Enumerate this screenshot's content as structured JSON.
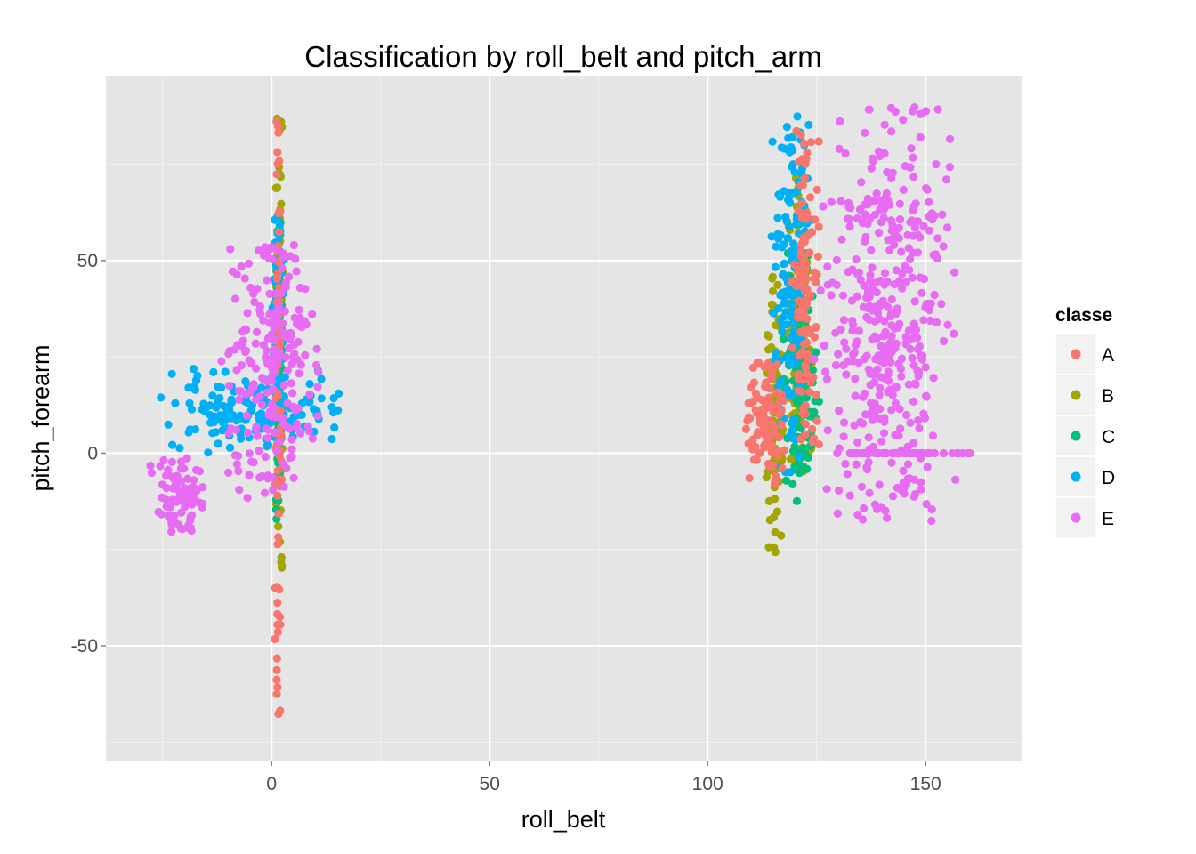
{
  "chart_data": {
    "type": "scatter",
    "title": "Classification by roll_belt and pitch_arm",
    "xlabel": "roll_belt",
    "ylabel": "pitch_forearm",
    "xlim": [
      -38,
      172
    ],
    "ylim": [
      -80,
      98
    ],
    "x_ticks": [
      0,
      50,
      100,
      150
    ],
    "y_ticks": [
      -50,
      0,
      50
    ],
    "x_tick_labels": [
      "0",
      "50",
      "100",
      "150"
    ],
    "y_tick_labels": [
      "-50",
      "0",
      "50"
    ],
    "grid": true,
    "legend": {
      "title": "classe",
      "position": "right"
    },
    "series": [
      {
        "name": "A",
        "color": "#F8766D",
        "clusters": [
          {
            "x": [
              0.6,
              2.4
            ],
            "y": [
              -72,
              88
            ]
          },
          {
            "x": [
              108,
              118
            ],
            "y": [
              -8,
              24
            ]
          },
          {
            "x": [
              119,
              126
            ],
            "y": [
              -5,
              87
            ]
          }
        ]
      },
      {
        "name": "B",
        "color": "#A3A500",
        "clusters": [
          {
            "x": [
              0.8,
              2.8
            ],
            "y": [
              -30,
              87
            ]
          },
          {
            "x": [
              113,
              118
            ],
            "y": [
              -26,
              46
            ]
          },
          {
            "x": [
              118,
              124
            ],
            "y": [
              -6,
              72
            ]
          }
        ]
      },
      {
        "name": "C",
        "color": "#00BF7D",
        "clusters": [
          {
            "x": [
              0.5,
              3.0
            ],
            "y": [
              -18,
              60
            ]
          },
          {
            "x": [
              117,
              126
            ],
            "y": [
              -14,
              52
            ]
          }
        ]
      },
      {
        "name": "D",
        "color": "#00B0F6",
        "clusters": [
          {
            "x": [
              -28,
              18
            ],
            "y": [
              0,
              22
            ]
          },
          {
            "x": [
              0,
              3
            ],
            "y": [
              5,
              62
            ]
          },
          {
            "x": [
              114,
              124
            ],
            "y": [
              -5,
              88
            ]
          }
        ]
      },
      {
        "name": "E",
        "color": "#E76BF3",
        "clusters": [
          {
            "x": [
              -28,
              -15
            ],
            "y": [
              -21,
              -1
            ]
          },
          {
            "x": [
              -12,
              12
            ],
            "y": [
              -12,
              55
            ]
          },
          {
            "x": [
              124,
              158
            ],
            "y": [
              -18,
              90
            ]
          },
          {
            "x": [
              128,
              162
            ],
            "y": [
              0,
              0
            ]
          }
        ]
      }
    ]
  }
}
